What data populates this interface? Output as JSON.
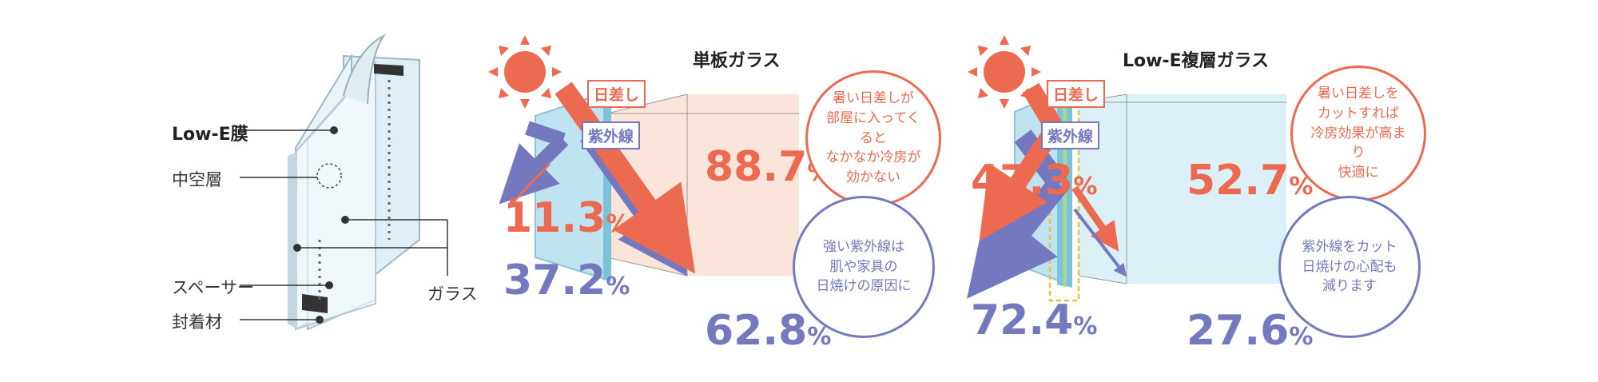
{
  "structure": {
    "low_e_label": "Low-E膜",
    "hollow_label": "中空層",
    "spacer_label": "スペーサー",
    "sealant_label": "封着材",
    "glass_label": "ガラス"
  },
  "panels": [
    {
      "title": "単板ガラス",
      "sun_tag": "日差し",
      "uv_tag": "紫外線",
      "reflect_sun": {
        "big": "11.3",
        "sm": "%"
      },
      "reflect_uv": {
        "big": "37.2",
        "sm": "%"
      },
      "transmit_sun": {
        "big": "88.7",
        "sm": "%"
      },
      "transmit_uv": {
        "big": "62.8",
        "sm": "%"
      },
      "bubble_red": [
        "暑い日差しが",
        "部屋に入ってくると",
        "なかなか冷房が",
        "効かない"
      ],
      "bubble_blue": [
        "強い紫外線は",
        "肌や家具の",
        "日焼けの原因に"
      ]
    },
    {
      "title": "Low-E複層ガラス",
      "sun_tag": "日差し",
      "uv_tag": "紫外線",
      "reflect_sun": {
        "big": "47.3",
        "sm": "%"
      },
      "reflect_uv": {
        "big": "72.4",
        "sm": "%"
      },
      "transmit_sun": {
        "big": "52.7",
        "sm": "%"
      },
      "transmit_uv": {
        "big": "27.6",
        "sm": "%"
      },
      "bubble_red": [
        "暑い日差しを",
        "カットすれば",
        "冷房効果が高まり",
        "快適に"
      ],
      "bubble_blue": [
        "紫外線をカット",
        "日焼けの心配も",
        "減ります"
      ]
    }
  ],
  "colors": {
    "sun": "#ec6a50",
    "uv": "#7478be",
    "glass": "#bfe3f0",
    "room_left": "#fbe4da",
    "room_right": "#dcf0f8",
    "dash": "#e8c23a"
  }
}
